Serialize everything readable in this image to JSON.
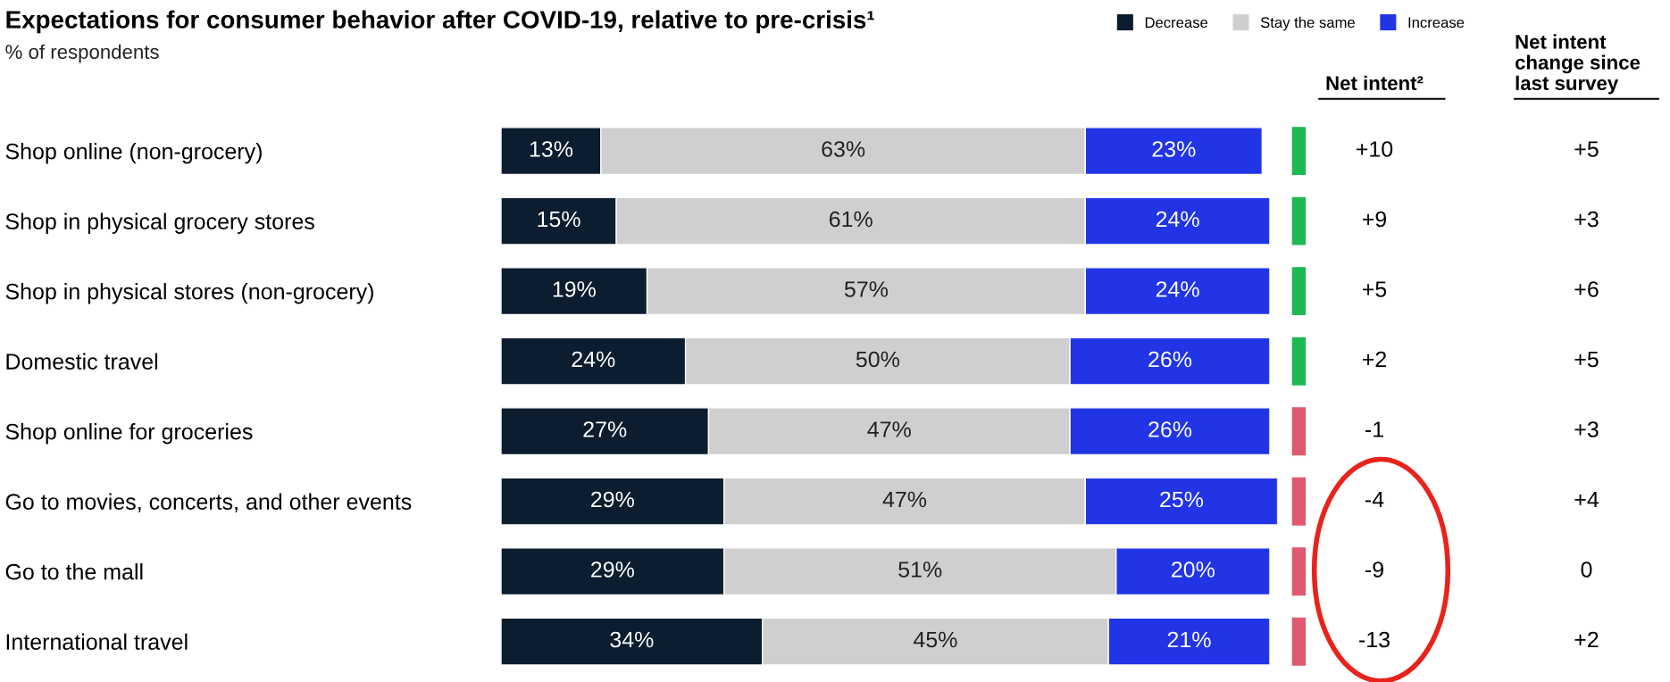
{
  "chart_data": {
    "type": "bar",
    "orientation": "horizontal",
    "stacked": true,
    "title": "Expectations for consumer behavior after COVID-19, relative to pre-crisis¹",
    "subtitle": "% of respondents",
    "categories": [
      "Shop online (non-grocery)",
      "Shop in physical grocery stores",
      "Shop in physical stores (non-grocery)",
      "Domestic travel",
      "Shop online for groceries",
      "Go to movies, concerts, and other events",
      "Go to the mall",
      "International travel"
    ],
    "series": [
      {
        "name": "Decrease",
        "color": "#0b1d2e",
        "values": [
          13,
          15,
          19,
          24,
          27,
          29,
          29,
          34
        ],
        "value_labels": [
          "13%",
          "15%",
          "19%",
          "24%",
          "27%",
          "29%",
          "29%",
          "34%"
        ]
      },
      {
        "name": "Stay the same",
        "color": "#cfcfcf",
        "values": [
          63,
          61,
          57,
          50,
          47,
          47,
          51,
          45
        ],
        "value_labels": [
          "63%",
          "61%",
          "57%",
          "50%",
          "47%",
          "47%",
          "51%",
          "45%"
        ]
      },
      {
        "name": "Increase",
        "color": "#2135e6",
        "values": [
          23,
          24,
          24,
          26,
          26,
          25,
          20,
          21
        ],
        "value_labels": [
          "23%",
          "24%",
          "24%",
          "26%",
          "26%",
          "25%",
          "20%",
          "21%"
        ]
      }
    ],
    "tick_labels": "y",
    "grid": false,
    "legend": "top right",
    "annotations": [
      "Net intent²",
      "Net intent\nchange since\nlast survey",
      "+10",
      "+9",
      "+5",
      "+2",
      "-1",
      "-4",
      "-9",
      "-13",
      "+5",
      "+3",
      "+6",
      "+5",
      "+3",
      "+4",
      "0",
      "+2"
    ]
  }
}
